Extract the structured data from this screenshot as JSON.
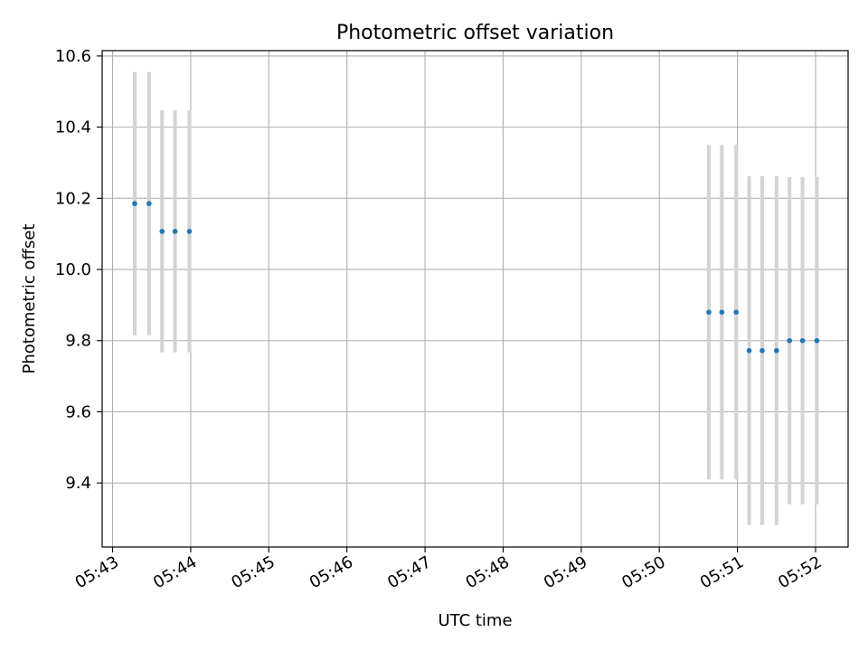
{
  "chart_data": {
    "type": "scatter",
    "title": "Photometric offset variation",
    "xlabel": "UTC time",
    "ylabel": "Photometric offset",
    "x_tick_labels": [
      "05:43",
      "05:44",
      "05:45",
      "05:46",
      "05:47",
      "05:48",
      "05:49",
      "05:50",
      "05:51",
      "05:52"
    ],
    "x_ticks_minutes": [
      0,
      1,
      2,
      3,
      4,
      5,
      6,
      7,
      8,
      9
    ],
    "y_ticks": [
      9.4,
      9.6,
      9.8,
      10.0,
      10.2,
      10.4,
      10.6
    ],
    "y_tick_labels": [
      "9.4",
      "9.6",
      "9.8",
      "10.0",
      "10.2",
      "10.4",
      "10.6"
    ],
    "xlim": [
      "05:42:52",
      "05:52:25"
    ],
    "ylim": [
      9.22,
      10.615
    ],
    "grid": true,
    "point_color": "#1f77b4",
    "errorbar_color": "#d3d3d3",
    "series": [
      {
        "points": [
          {
            "x": "05:43:17",
            "y": 10.185,
            "yerr": 0.37
          },
          {
            "x": "05:43:28",
            "y": 10.185,
            "yerr": 0.37
          },
          {
            "x": "05:43:38",
            "y": 10.107,
            "yerr": 0.34
          },
          {
            "x": "05:43:48",
            "y": 10.107,
            "yerr": 0.34
          },
          {
            "x": "05:43:59",
            "y": 10.107,
            "yerr": 0.34
          },
          {
            "x": "05:50:38",
            "y": 9.88,
            "yerr": 0.47
          },
          {
            "x": "05:50:48",
            "y": 9.88,
            "yerr": 0.47
          },
          {
            "x": "05:50:59",
            "y": 9.88,
            "yerr": 0.47
          },
          {
            "x": "05:51:09",
            "y": 9.772,
            "yerr": 0.49
          },
          {
            "x": "05:51:19",
            "y": 9.772,
            "yerr": 0.49
          },
          {
            "x": "05:51:30",
            "y": 9.772,
            "yerr": 0.49
          },
          {
            "x": "05:51:40",
            "y": 9.8,
            "yerr": 0.46
          },
          {
            "x": "05:51:50",
            "y": 9.8,
            "yerr": 0.46
          },
          {
            "x": "05:52:01",
            "y": 9.8,
            "yerr": 0.46
          }
        ]
      }
    ]
  }
}
